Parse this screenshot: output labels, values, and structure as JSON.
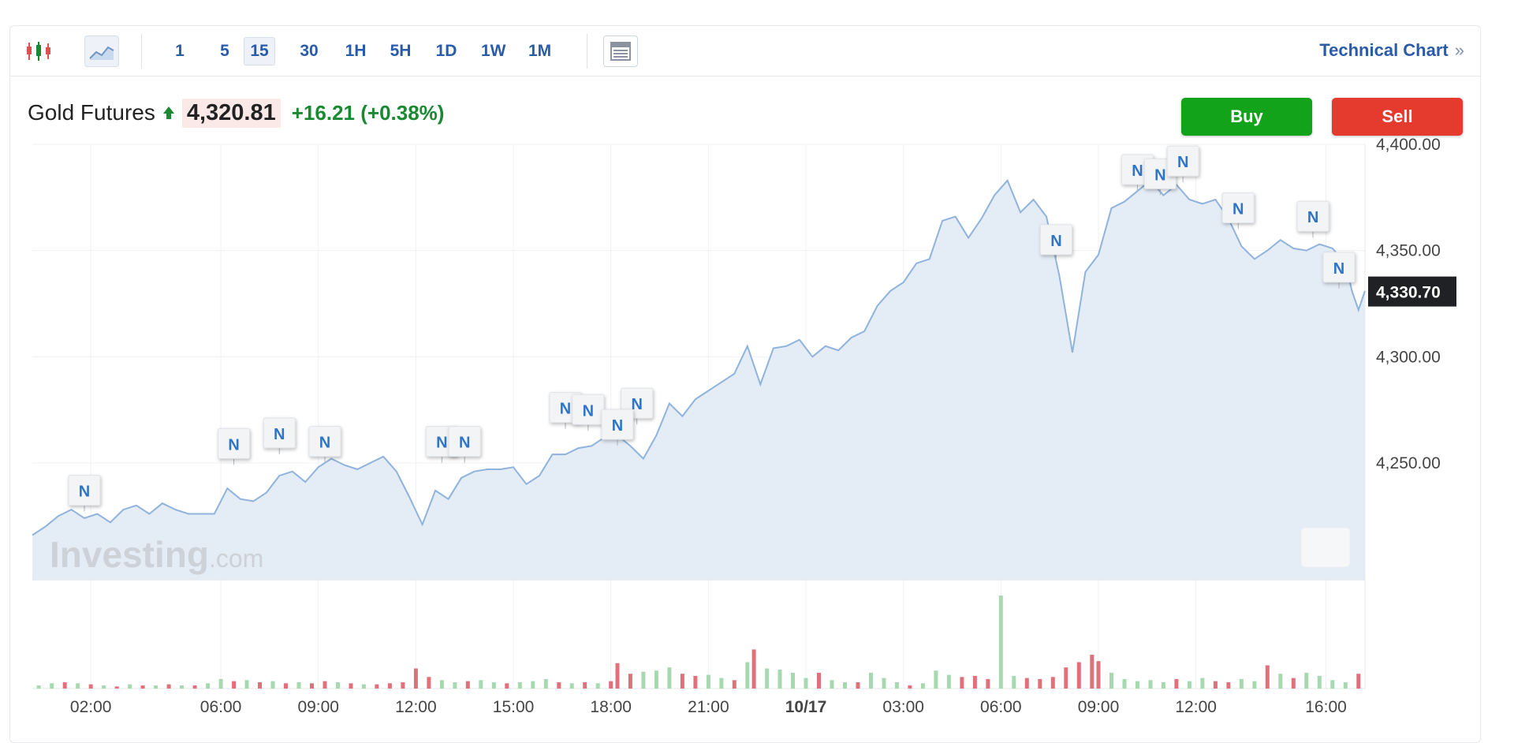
{
  "toolbar": {
    "chart_type_icons": [
      "candlestick-icon",
      "area-chart-icon"
    ],
    "intervals": [
      "1",
      "5",
      "15",
      "30",
      "1H",
      "5H",
      "1D",
      "1W",
      "1M"
    ],
    "active_interval": "15",
    "table_icon": "table-icon",
    "technical_chart_label": "Technical Chart",
    "technical_chart_arrow": "»"
  },
  "quote": {
    "name": "Gold Futures",
    "price": "4,320.81",
    "change": "+16.21 (+0.38%)",
    "direction_icon": "arrow-up-icon"
  },
  "actions": {
    "buy_label": "Buy",
    "sell_label": "Sell"
  },
  "colors": {
    "accent_blue": "#2a5ba8",
    "up_green": "#1a8a32",
    "buy_green": "#12a31b",
    "sell_red": "#e53a2e",
    "area_fill": "#e4ecf6",
    "line": "#8fb3dc",
    "vol_up": "#a6d9b0",
    "vol_down": "#e0717a"
  },
  "watermark": {
    "brand": "Investing",
    "suffix": ".com"
  },
  "chart_data": {
    "type": "area",
    "title": "",
    "xlabel": "",
    "ylabel": "",
    "ylim": [
      4195,
      4400
    ],
    "y_ticks": [
      4250,
      4300,
      4350,
      4400
    ],
    "y_tick_labels": [
      "4,250.00",
      "4,300.00",
      "4,350.00",
      "4,400.00"
    ],
    "x_tick_labels": [
      "02:00",
      "06:00",
      "09:00",
      "12:00",
      "15:00",
      "18:00",
      "21:00",
      "10/17",
      "03:00",
      "06:00",
      "09:00",
      "12:00",
      "16:00"
    ],
    "x_tick_positions": [
      2,
      6,
      9,
      12,
      15,
      18,
      21,
      24,
      27,
      30,
      33,
      36,
      40
    ],
    "x_range": [
      0.2,
      41.2
    ],
    "grid": true,
    "last_value": 4330.7,
    "last_value_label": "4,330.70",
    "price_series": [
      [
        0.2,
        4216
      ],
      [
        0.6,
        4220
      ],
      [
        1.0,
        4225
      ],
      [
        1.4,
        4228
      ],
      [
        1.8,
        4224
      ],
      [
        2.2,
        4226
      ],
      [
        2.6,
        4222
      ],
      [
        3.0,
        4228
      ],
      [
        3.4,
        4230
      ],
      [
        3.8,
        4226
      ],
      [
        4.2,
        4231
      ],
      [
        4.6,
        4228
      ],
      [
        5.0,
        4226
      ],
      [
        5.4,
        4226
      ],
      [
        5.8,
        4226
      ],
      [
        6.2,
        4238
      ],
      [
        6.6,
        4233
      ],
      [
        7.0,
        4232
      ],
      [
        7.4,
        4236
      ],
      [
        7.8,
        4244
      ],
      [
        8.2,
        4246
      ],
      [
        8.6,
        4241
      ],
      [
        9.0,
        4248
      ],
      [
        9.4,
        4252
      ],
      [
        9.8,
        4249
      ],
      [
        10.2,
        4247
      ],
      [
        10.6,
        4250
      ],
      [
        11.0,
        4253
      ],
      [
        11.4,
        4246
      ],
      [
        11.8,
        4234
      ],
      [
        12.2,
        4221
      ],
      [
        12.6,
        4237
      ],
      [
        13.0,
        4233
      ],
      [
        13.4,
        4243
      ],
      [
        13.8,
        4246
      ],
      [
        14.2,
        4247
      ],
      [
        14.6,
        4247
      ],
      [
        15.0,
        4248
      ],
      [
        15.4,
        4240
      ],
      [
        15.8,
        4244
      ],
      [
        16.2,
        4254
      ],
      [
        16.6,
        4254
      ],
      [
        17.0,
        4257
      ],
      [
        17.4,
        4258
      ],
      [
        17.8,
        4262
      ],
      [
        18.2,
        4263
      ],
      [
        18.6,
        4258
      ],
      [
        19.0,
        4252
      ],
      [
        19.4,
        4263
      ],
      [
        19.8,
        4278
      ],
      [
        20.2,
        4272
      ],
      [
        20.6,
        4280
      ],
      [
        21.0,
        4284
      ],
      [
        21.4,
        4288
      ],
      [
        21.8,
        4292
      ],
      [
        22.2,
        4305
      ],
      [
        22.6,
        4287
      ],
      [
        23.0,
        4304
      ],
      [
        23.4,
        4305
      ],
      [
        23.8,
        4308
      ],
      [
        24.2,
        4300
      ],
      [
        24.6,
        4305
      ],
      [
        25.0,
        4303
      ],
      [
        25.4,
        4309
      ],
      [
        25.8,
        4312
      ],
      [
        26.2,
        4324
      ],
      [
        26.6,
        4331
      ],
      [
        27.0,
        4335
      ],
      [
        27.4,
        4344
      ],
      [
        27.8,
        4346
      ],
      [
        28.2,
        4364
      ],
      [
        28.6,
        4366
      ],
      [
        29.0,
        4356
      ],
      [
        29.4,
        4365
      ],
      [
        29.8,
        4376
      ],
      [
        30.2,
        4383
      ],
      [
        30.6,
        4368
      ],
      [
        31.0,
        4374
      ],
      [
        31.4,
        4366
      ],
      [
        31.8,
        4338
      ],
      [
        32.2,
        4302
      ],
      [
        32.6,
        4340
      ],
      [
        33.0,
        4348
      ],
      [
        33.4,
        4370
      ],
      [
        33.8,
        4373
      ],
      [
        34.2,
        4378
      ],
      [
        34.6,
        4383
      ],
      [
        35.0,
        4376
      ],
      [
        35.4,
        4381
      ],
      [
        35.8,
        4374
      ],
      [
        36.2,
        4372
      ],
      [
        36.6,
        4374
      ],
      [
        37.0,
        4365
      ],
      [
        37.4,
        4352
      ],
      [
        37.8,
        4346
      ],
      [
        38.2,
        4350
      ],
      [
        38.6,
        4355
      ],
      [
        39.0,
        4351
      ],
      [
        39.4,
        4350
      ],
      [
        39.8,
        4353
      ],
      [
        40.2,
        4351
      ],
      [
        40.6,
        4344
      ],
      [
        40.8,
        4331
      ],
      [
        41.0,
        4322
      ],
      [
        41.2,
        4331
      ]
    ],
    "news_markers": [
      {
        "x": 1.8,
        "y": 4236,
        "label": "N"
      },
      {
        "x": 6.4,
        "y": 4258,
        "label": "N"
      },
      {
        "x": 7.8,
        "y": 4263,
        "label": "N"
      },
      {
        "x": 9.2,
        "y": 4259,
        "label": "N"
      },
      {
        "x": 12.8,
        "y": 4259,
        "label": "N"
      },
      {
        "x": 13.5,
        "y": 4259,
        "label": "N"
      },
      {
        "x": 16.6,
        "y": 4275,
        "label": "N"
      },
      {
        "x": 17.3,
        "y": 4274,
        "label": "N"
      },
      {
        "x": 18.8,
        "y": 4277,
        "label": "N"
      },
      {
        "x": 18.2,
        "y": 4267,
        "label": "N"
      },
      {
        "x": 31.7,
        "y": 4354,
        "label": "N"
      },
      {
        "x": 34.2,
        "y": 4387,
        "label": "N"
      },
      {
        "x": 34.9,
        "y": 4385,
        "label": "N"
      },
      {
        "x": 35.6,
        "y": 4391,
        "label": "N"
      },
      {
        "x": 37.3,
        "y": 4369,
        "label": "N"
      },
      {
        "x": 39.6,
        "y": 4365,
        "label": "N"
      },
      {
        "x": 40.4,
        "y": 4341,
        "label": "N"
      }
    ],
    "volume": {
      "ylim": [
        0,
        100
      ],
      "bars": [
        [
          0.4,
          3,
          "u"
        ],
        [
          0.8,
          5,
          "u"
        ],
        [
          1.2,
          6,
          "d"
        ],
        [
          1.6,
          5,
          "u"
        ],
        [
          2.0,
          4,
          "d"
        ],
        [
          2.4,
          3,
          "u"
        ],
        [
          2.8,
          2,
          "d"
        ],
        [
          3.2,
          4,
          "u"
        ],
        [
          3.6,
          3,
          "d"
        ],
        [
          4.0,
          3,
          "u"
        ],
        [
          4.4,
          4,
          "d"
        ],
        [
          4.8,
          3,
          "u"
        ],
        [
          5.2,
          3,
          "d"
        ],
        [
          5.6,
          5,
          "u"
        ],
        [
          6.0,
          9,
          "u"
        ],
        [
          6.4,
          7,
          "d"
        ],
        [
          6.8,
          8,
          "u"
        ],
        [
          7.2,
          6,
          "d"
        ],
        [
          7.6,
          7,
          "u"
        ],
        [
          8.0,
          5,
          "d"
        ],
        [
          8.4,
          6,
          "u"
        ],
        [
          8.8,
          5,
          "d"
        ],
        [
          9.2,
          7,
          "d"
        ],
        [
          9.6,
          6,
          "u"
        ],
        [
          10.0,
          5,
          "d"
        ],
        [
          10.4,
          4,
          "u"
        ],
        [
          10.8,
          4,
          "d"
        ],
        [
          11.2,
          5,
          "d"
        ],
        [
          11.6,
          6,
          "d"
        ],
        [
          12.0,
          19,
          "d"
        ],
        [
          12.4,
          11,
          "d"
        ],
        [
          12.8,
          8,
          "u"
        ],
        [
          13.2,
          6,
          "u"
        ],
        [
          13.6,
          7,
          "d"
        ],
        [
          14.0,
          8,
          "u"
        ],
        [
          14.4,
          6,
          "u"
        ],
        [
          14.8,
          5,
          "d"
        ],
        [
          15.2,
          6,
          "u"
        ],
        [
          15.6,
          7,
          "u"
        ],
        [
          16.0,
          9,
          "u"
        ],
        [
          16.4,
          6,
          "d"
        ],
        [
          16.8,
          5,
          "u"
        ],
        [
          17.2,
          6,
          "d"
        ],
        [
          17.6,
          5,
          "u"
        ],
        [
          18.0,
          7,
          "d"
        ],
        [
          18.2,
          24,
          "d"
        ],
        [
          18.6,
          14,
          "d"
        ],
        [
          19.0,
          16,
          "u"
        ],
        [
          19.4,
          17,
          "u"
        ],
        [
          19.8,
          20,
          "u"
        ],
        [
          20.2,
          14,
          "d"
        ],
        [
          20.6,
          12,
          "d"
        ],
        [
          21.0,
          13,
          "u"
        ],
        [
          21.4,
          10,
          "u"
        ],
        [
          21.8,
          8,
          "d"
        ],
        [
          22.2,
          25,
          "u"
        ],
        [
          22.4,
          37,
          "d"
        ],
        [
          22.8,
          19,
          "u"
        ],
        [
          23.2,
          18,
          "u"
        ],
        [
          23.6,
          15,
          "u"
        ],
        [
          24.0,
          10,
          "u"
        ],
        [
          24.4,
          15,
          "d"
        ],
        [
          24.8,
          8,
          "u"
        ],
        [
          25.2,
          6,
          "u"
        ],
        [
          25.6,
          6,
          "d"
        ],
        [
          26.0,
          15,
          "u"
        ],
        [
          26.4,
          10,
          "u"
        ],
        [
          26.8,
          6,
          "u"
        ],
        [
          27.2,
          3,
          "d"
        ],
        [
          27.6,
          5,
          "u"
        ],
        [
          28.0,
          17,
          "u"
        ],
        [
          28.4,
          13,
          "u"
        ],
        [
          28.8,
          11,
          "d"
        ],
        [
          29.2,
          12,
          "d"
        ],
        [
          29.6,
          9,
          "d"
        ],
        [
          30.0,
          88,
          "u"
        ],
        [
          30.4,
          12,
          "u"
        ],
        [
          30.8,
          10,
          "d"
        ],
        [
          31.2,
          9,
          "d"
        ],
        [
          31.6,
          11,
          "d"
        ],
        [
          32.0,
          20,
          "d"
        ],
        [
          32.4,
          25,
          "d"
        ],
        [
          32.8,
          32,
          "d"
        ],
        [
          33.0,
          26,
          "d"
        ],
        [
          33.4,
          15,
          "u"
        ],
        [
          33.8,
          9,
          "u"
        ],
        [
          34.2,
          7,
          "u"
        ],
        [
          34.6,
          8,
          "u"
        ],
        [
          35.0,
          6,
          "u"
        ],
        [
          35.4,
          9,
          "d"
        ],
        [
          35.8,
          7,
          "u"
        ],
        [
          36.2,
          10,
          "u"
        ],
        [
          36.6,
          7,
          "d"
        ],
        [
          37.0,
          6,
          "d"
        ],
        [
          37.4,
          9,
          "u"
        ],
        [
          37.8,
          7,
          "u"
        ],
        [
          38.2,
          22,
          "d"
        ],
        [
          38.6,
          14,
          "u"
        ],
        [
          39.0,
          10,
          "d"
        ],
        [
          39.4,
          15,
          "u"
        ],
        [
          39.8,
          12,
          "u"
        ],
        [
          40.2,
          8,
          "u"
        ],
        [
          40.6,
          6,
          "u"
        ],
        [
          41.0,
          14,
          "d"
        ]
      ]
    }
  }
}
